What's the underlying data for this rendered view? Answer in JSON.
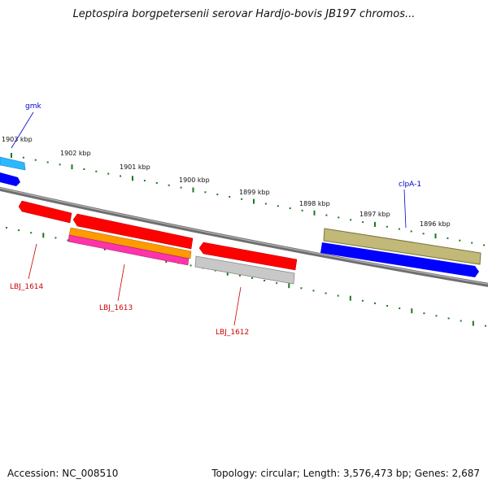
{
  "title": "Leptospira borgpetersenii serovar Hardjo-bovis JB197 chromos...",
  "scale_ticks": [
    "1903 kbp",
    "1902 kbp",
    "1901 kbp",
    "1900 kbp",
    "1899 kbp",
    "1898 kbp",
    "1897 kbp",
    "1896 kbp"
  ],
  "genes": [
    {
      "name": "gmk",
      "strand": "forward",
      "color": "#1e90ff",
      "label_color": "#0000cc"
    },
    {
      "name": "clpA-1",
      "strand": "forward",
      "color": "#b8b070",
      "label_color": "#0000cc"
    },
    {
      "name": "LBJ_1614",
      "strand": "reverse",
      "color": "#ff0000",
      "label_color": "#cc0000"
    },
    {
      "name": "LBJ_1613",
      "strand": "reverse",
      "color": "#ff0000",
      "label_color": "#cc0000"
    },
    {
      "name": "LBJ_1612",
      "strand": "reverse",
      "color": "#ff0000",
      "label_color": "#cc0000"
    }
  ],
  "colors": {
    "backbone": "#808080",
    "ticks": "#1a7a1a",
    "forward_cds": "#0000ff",
    "reverse_cds": "#ff0000",
    "orange_feature": "#ff9900",
    "magenta_feature": "#ff33aa",
    "grey_feature": "#b0b0b0",
    "cyan_feature": "#33ccff"
  },
  "footer": {
    "accession": "Accession: NC_008510",
    "stats": "Topology: circular; Length: 3,576,473 bp; Genes: 2,687"
  }
}
